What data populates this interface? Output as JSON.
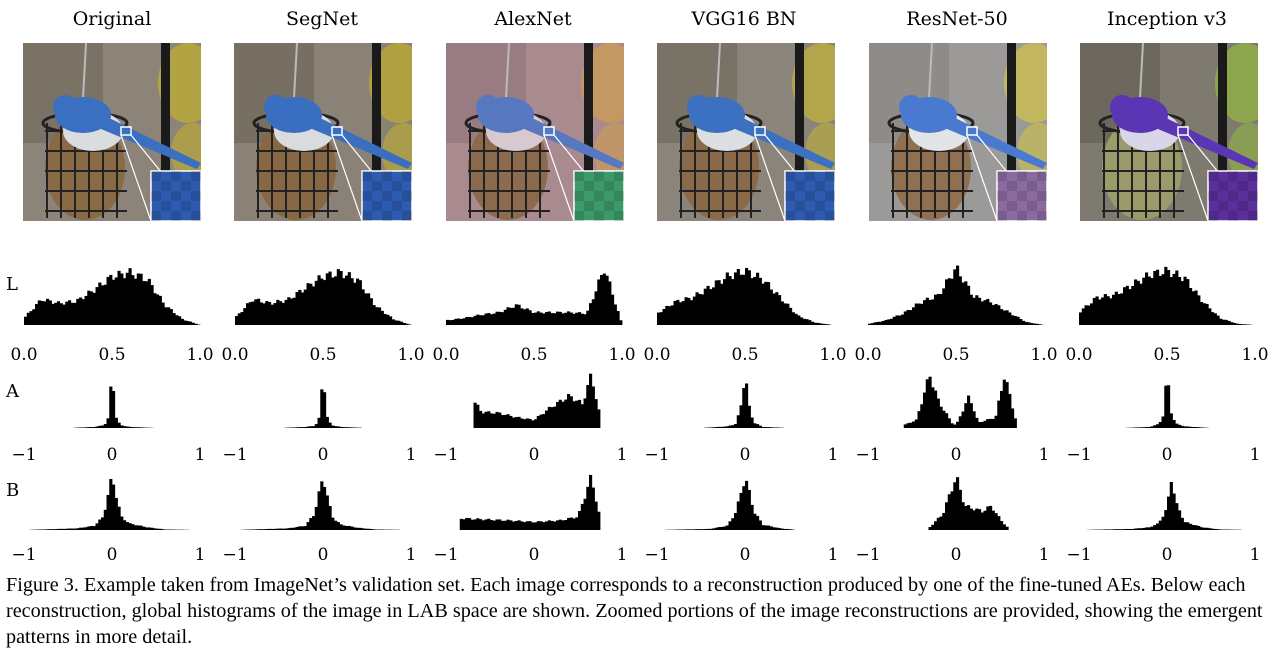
{
  "columns": [
    {
      "title": "Original"
    },
    {
      "title": "SegNet"
    },
    {
      "title": "AlexNet"
    },
    {
      "title": "VGG16 BN"
    },
    {
      "title": "ResNet-50"
    },
    {
      "title": "Inception v3"
    }
  ],
  "row_labels": [
    "L",
    "A",
    "B"
  ],
  "axis_ticks": {
    "L": [
      "0.0",
      "0.5",
      "1.0"
    ],
    "A": [
      "−1",
      "0",
      "1"
    ],
    "B": [
      "−1",
      "0",
      "1"
    ]
  },
  "colors": {
    "histogram": "#000000",
    "zoom_inset_blue": "#2d5bb0",
    "zoom_inset_purple": "#5a2f9a"
  },
  "chart_data": [
    {
      "type": "bar",
      "panel": "Original-L",
      "xlim": [
        0,
        1
      ],
      "x": [
        0.0,
        0.1,
        0.2,
        0.3,
        0.4,
        0.5,
        0.6,
        0.7,
        0.8,
        0.9,
        1.0
      ],
      "values": [
        0.12,
        0.45,
        0.38,
        0.42,
        0.62,
        0.85,
        0.92,
        0.8,
        0.35,
        0.1,
        0.0
      ]
    },
    {
      "type": "bar",
      "panel": "SegNet-L",
      "xlim": [
        0,
        1
      ],
      "x": [
        0.0,
        0.1,
        0.2,
        0.3,
        0.4,
        0.5,
        0.6,
        0.7,
        0.8,
        0.9,
        1.0
      ],
      "values": [
        0.12,
        0.45,
        0.38,
        0.44,
        0.65,
        0.85,
        0.92,
        0.78,
        0.33,
        0.1,
        0.0
      ]
    },
    {
      "type": "bar",
      "panel": "AlexNet-L",
      "xlim": [
        0,
        1
      ],
      "x": [
        0.0,
        0.1,
        0.2,
        0.3,
        0.4,
        0.5,
        0.6,
        0.7,
        0.8,
        0.9,
        1.0
      ],
      "values": [
        0.08,
        0.12,
        0.18,
        0.22,
        0.35,
        0.22,
        0.22,
        0.22,
        0.2,
        1.0,
        0.0
      ]
    },
    {
      "type": "bar",
      "panel": "VGG16 BN-L",
      "xlim": [
        0,
        1
      ],
      "x": [
        0.0,
        0.1,
        0.2,
        0.3,
        0.4,
        0.5,
        0.6,
        0.7,
        0.8,
        0.9,
        1.0
      ],
      "values": [
        0.2,
        0.4,
        0.48,
        0.66,
        0.85,
        0.95,
        0.8,
        0.48,
        0.16,
        0.04,
        0.0
      ]
    },
    {
      "type": "bar",
      "panel": "ResNet-50-L",
      "xlim": [
        0,
        1
      ],
      "x": [
        0.0,
        0.1,
        0.2,
        0.3,
        0.4,
        0.5,
        0.6,
        0.7,
        0.8,
        0.9,
        1.0
      ],
      "values": [
        0.02,
        0.08,
        0.2,
        0.4,
        0.52,
        1.0,
        0.5,
        0.4,
        0.22,
        0.05,
        0.0
      ]
    },
    {
      "type": "bar",
      "panel": "Inception v3-L",
      "xlim": [
        0,
        1
      ],
      "x": [
        0.0,
        0.1,
        0.2,
        0.3,
        0.4,
        0.5,
        0.6,
        0.7,
        0.8,
        0.9,
        1.0
      ],
      "values": [
        0.22,
        0.48,
        0.52,
        0.7,
        0.88,
        0.95,
        0.82,
        0.42,
        0.12,
        0.02,
        0.0
      ]
    },
    {
      "type": "bar",
      "panel": "Original-A",
      "xlim": [
        -1,
        1
      ],
      "x": [
        -1.0,
        -0.5,
        -0.2,
        -0.1,
        -0.05,
        0.0,
        0.05,
        0.1,
        0.2,
        0.5,
        1.0
      ],
      "values": [
        0.0,
        0.0,
        0.02,
        0.05,
        0.12,
        1.0,
        0.15,
        0.05,
        0.02,
        0.0,
        0.0
      ]
    },
    {
      "type": "bar",
      "panel": "SegNet-A",
      "xlim": [
        -1,
        1
      ],
      "x": [
        -1.0,
        -0.5,
        -0.2,
        -0.1,
        -0.05,
        0.0,
        0.05,
        0.1,
        0.2,
        0.5,
        1.0
      ],
      "values": [
        0.0,
        0.0,
        0.02,
        0.04,
        0.12,
        1.0,
        0.15,
        0.05,
        0.02,
        0.0,
        0.0
      ]
    },
    {
      "type": "bar",
      "panel": "AlexNet-A",
      "xlim": [
        -1,
        1
      ],
      "x": [
        -0.7,
        -0.6,
        -0.4,
        -0.2,
        0.0,
        0.2,
        0.4,
        0.55,
        0.65,
        0.75
      ],
      "values": [
        0.55,
        0.3,
        0.28,
        0.2,
        0.15,
        0.4,
        0.6,
        0.45,
        1.0,
        0.2
      ]
    },
    {
      "type": "bar",
      "panel": "VGG16 BN-A",
      "xlim": [
        -1,
        1
      ],
      "x": [
        -1.0,
        -0.5,
        -0.2,
        -0.1,
        -0.05,
        0.0,
        0.05,
        0.1,
        0.2,
        0.5,
        1.0
      ],
      "values": [
        0.0,
        0.0,
        0.03,
        0.08,
        0.4,
        1.0,
        0.35,
        0.1,
        0.02,
        0.0,
        0.0
      ]
    },
    {
      "type": "bar",
      "panel": "ResNet-50-A",
      "xlim": [
        -1,
        1
      ],
      "x": [
        -0.6,
        -0.45,
        -0.3,
        -0.2,
        -0.05,
        0.0,
        0.15,
        0.25,
        0.45,
        0.55,
        0.7
      ],
      "values": [
        0.05,
        0.15,
        1.0,
        0.5,
        0.1,
        0.05,
        0.6,
        0.1,
        0.2,
        1.0,
        0.0
      ]
    },
    {
      "type": "bar",
      "panel": "Inception v3-A",
      "xlim": [
        -1,
        1
      ],
      "x": [
        -1.0,
        -0.5,
        -0.2,
        -0.1,
        -0.05,
        0.0,
        0.05,
        0.1,
        0.2,
        0.5,
        1.0
      ],
      "values": [
        0.0,
        0.0,
        0.02,
        0.07,
        0.18,
        1.0,
        0.25,
        0.08,
        0.03,
        0.0,
        0.0
      ]
    },
    {
      "type": "bar",
      "panel": "Original-B",
      "xlim": [
        -1,
        1
      ],
      "x": [
        -1.0,
        -0.4,
        -0.2,
        -0.1,
        0.0,
        0.1,
        0.2,
        0.4,
        0.6,
        1.0
      ],
      "values": [
        0.0,
        0.03,
        0.08,
        0.25,
        1.0,
        0.25,
        0.12,
        0.05,
        0.01,
        0.0
      ]
    },
    {
      "type": "bar",
      "panel": "SegNet-B",
      "xlim": [
        -1,
        1
      ],
      "x": [
        -1.0,
        -0.4,
        -0.2,
        -0.1,
        0.0,
        0.1,
        0.2,
        0.4,
        0.6,
        1.0
      ],
      "values": [
        0.0,
        0.03,
        0.08,
        0.3,
        1.0,
        0.25,
        0.1,
        0.04,
        0.01,
        0.0
      ]
    },
    {
      "type": "bar",
      "panel": "AlexNet-B",
      "xlim": [
        -1,
        1
      ],
      "x": [
        -0.85,
        -0.6,
        -0.3,
        0.0,
        0.3,
        0.5,
        0.65,
        0.75
      ],
      "values": [
        0.22,
        0.2,
        0.18,
        0.15,
        0.18,
        0.25,
        1.0,
        0.2
      ]
    },
    {
      "type": "bar",
      "panel": "VGG16 BN-B",
      "xlim": [
        -1,
        1
      ],
      "x": [
        -1.0,
        -0.4,
        -0.2,
        -0.1,
        0.0,
        0.1,
        0.2,
        0.4,
        0.6,
        1.0
      ],
      "values": [
        0.0,
        0.02,
        0.08,
        0.35,
        1.0,
        0.35,
        0.1,
        0.03,
        0.0,
        0.0
      ]
    },
    {
      "type": "bar",
      "panel": "ResNet-50-B",
      "xlim": [
        -1,
        1
      ],
      "x": [
        -0.3,
        -0.15,
        0.0,
        0.1,
        0.2,
        0.3,
        0.4,
        0.5,
        0.6
      ],
      "values": [
        0.05,
        0.3,
        1.0,
        0.45,
        0.4,
        0.35,
        0.45,
        0.2,
        0.02
      ]
    },
    {
      "type": "bar",
      "panel": "Inception v3-B",
      "xlim": [
        -1,
        1
      ],
      "x": [
        -1.0,
        -0.4,
        -0.2,
        -0.1,
        0.0,
        0.05,
        0.1,
        0.2,
        0.4,
        0.6,
        1.0
      ],
      "values": [
        0.0,
        0.02,
        0.05,
        0.12,
        0.4,
        1.0,
        0.5,
        0.15,
        0.05,
        0.01,
        0.0
      ]
    }
  ],
  "caption": "Figure 3. Example taken from ImageNet’s validation set. Each image corresponds to a reconstruction produced by one of the fine-tuned AEs. Below each reconstruction, global histograms of the image in LAB space are shown. Zoomed portions of the image reconstructions are provided, showing the emergent patterns in more detail."
}
